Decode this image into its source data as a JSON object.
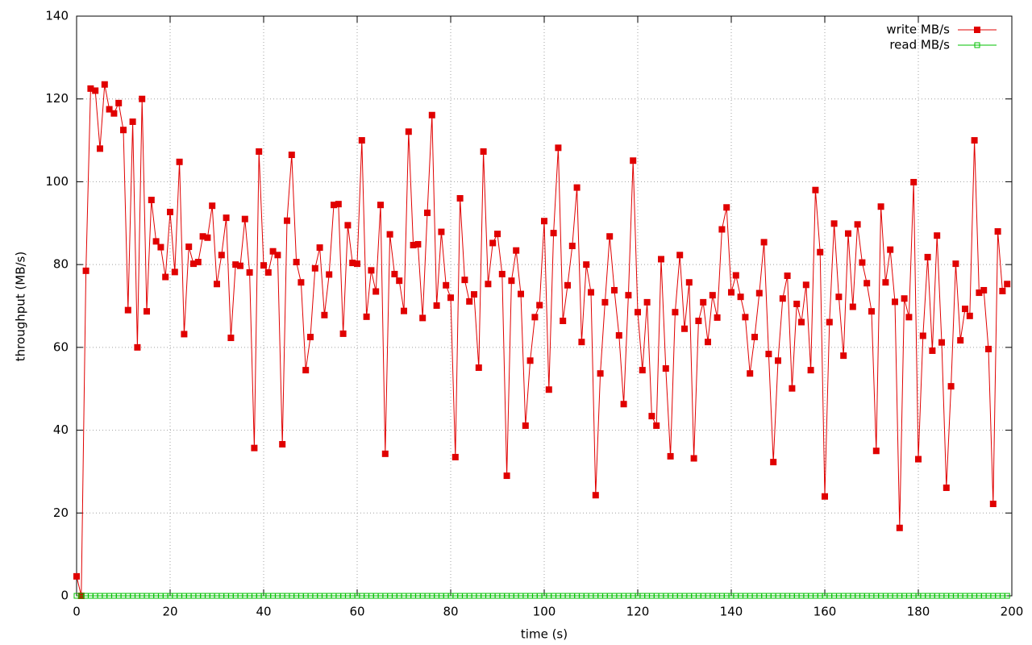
{
  "chart_data": {
    "type": "line",
    "xlabel": "time (s)",
    "ylabel": "throughput (MB/s)",
    "x": [
      0,
      1,
      2,
      3,
      4,
      5,
      6,
      7,
      8,
      9,
      10,
      11,
      12,
      13,
      14,
      15,
      16,
      17,
      18,
      19,
      20,
      21,
      22,
      23,
      24,
      25,
      26,
      27,
      28,
      29,
      30,
      31,
      32,
      33,
      34,
      35,
      36,
      37,
      38,
      39,
      40,
      41,
      42,
      43,
      44,
      45,
      46,
      47,
      48,
      49,
      50,
      51,
      52,
      53,
      54,
      55,
      56,
      57,
      58,
      59,
      60,
      61,
      62,
      63,
      64,
      65,
      66,
      67,
      68,
      69,
      70,
      71,
      72,
      73,
      74,
      75,
      76,
      77,
      78,
      79,
      80,
      81,
      82,
      83,
      84,
      85,
      86,
      87,
      88,
      89,
      90,
      91,
      92,
      93,
      94,
      95,
      96,
      97,
      98,
      99,
      100,
      101,
      102,
      103,
      104,
      105,
      106,
      107,
      108,
      109,
      110,
      111,
      112,
      113,
      114,
      115,
      116,
      117,
      118,
      119,
      120,
      121,
      122,
      123,
      124,
      125,
      126,
      127,
      128,
      129,
      130,
      131,
      132,
      133,
      134,
      135,
      136,
      137,
      138,
      139,
      140,
      141,
      142,
      143,
      144,
      145,
      146,
      147,
      148,
      149,
      150,
      151,
      152,
      153,
      154,
      155,
      156,
      157,
      158,
      159,
      160,
      161,
      162,
      163,
      164,
      165,
      166,
      167,
      168,
      169,
      170,
      171,
      172,
      173,
      174,
      175,
      176,
      177,
      178,
      179,
      180,
      181,
      182,
      183,
      184,
      185,
      186,
      187,
      188,
      189,
      190,
      191,
      192,
      193,
      194,
      195,
      196,
      197,
      198,
      199
    ],
    "series": [
      {
        "name": "write MB/s",
        "color": "#e00000",
        "marker": "filled-square",
        "values": [
          4.7,
          0,
          78.5,
          122.5,
          122,
          108,
          123.5,
          117.5,
          116.5,
          119,
          112.5,
          69,
          114.5,
          60,
          120,
          68.7,
          95.6,
          85.6,
          84.2,
          77,
          92.7,
          78.2,
          104.8,
          63.2,
          84.3,
          80.2,
          80.6,
          86.8,
          86.5,
          94.2,
          75.3,
          82.3,
          91.3,
          62.3,
          80,
          79.7,
          91,
          78.1,
          35.7,
          107.3,
          79.8,
          78.1,
          83.2,
          82.3,
          36.6,
          90.6,
          106.5,
          80.6,
          75.7,
          54.5,
          62.5,
          79.1,
          84.1,
          67.8,
          77.6,
          94.4,
          94.6,
          63.3,
          89.5,
          80.4,
          80.2,
          110,
          67.4,
          78.6,
          73.5,
          94.4,
          34.3,
          87.3,
          77.7,
          76.1,
          68.8,
          112.1,
          84.7,
          84.9,
          67.1,
          92.5,
          116.1,
          70.1,
          87.9,
          75,
          72,
          33.5,
          96,
          76.3,
          71.1,
          72.8,
          55.1,
          107.3,
          75.3,
          85.2,
          87.4,
          77.7,
          29,
          76.1,
          83.4,
          72.9,
          41.1,
          56.8,
          67.3,
          70.2,
          90.5,
          49.8,
          87.6,
          108.2,
          66.4,
          75,
          84.5,
          98.6,
          61.3,
          80,
          73.3,
          24.3,
          53.7,
          70.9,
          86.8,
          73.8,
          62.9,
          46.3,
          72.6,
          105.1,
          68.5,
          54.5,
          70.9,
          43.4,
          41.1,
          81.3,
          54.9,
          33.7,
          68.5,
          82.3,
          64.5,
          75.7,
          33.2,
          66.4,
          70.9,
          61.3,
          72.6,
          67.2,
          88.5,
          93.8,
          73.3,
          77.4,
          72.2,
          67.3,
          53.7,
          62.5,
          73.1,
          85.4,
          58.4,
          32.3,
          56.8,
          71.8,
          77.3,
          50.1,
          70.5,
          66.1,
          75.1,
          54.5,
          98,
          83,
          24,
          66.1,
          89.9,
          72.2,
          58,
          87.5,
          69.8,
          89.7,
          80.5,
          75.5,
          68.7,
          35,
          94,
          75.7,
          83.6,
          71,
          16.4,
          71.8,
          67.3,
          99.9,
          33,
          62.8,
          81.8,
          59.2,
          87,
          61.2,
          26.1,
          50.6,
          80.2,
          61.7,
          69.3,
          67.6,
          110,
          73.2,
          73.8,
          59.6,
          22.2,
          88,
          73.6,
          75.3
        ]
      },
      {
        "name": "read MB/s",
        "color": "#00c000",
        "marker": "open-square",
        "values": [
          0,
          0,
          0,
          0,
          0,
          0,
          0,
          0,
          0,
          0,
          0,
          0,
          0,
          0,
          0,
          0,
          0,
          0,
          0,
          0,
          0,
          0,
          0,
          0,
          0,
          0,
          0,
          0,
          0,
          0,
          0,
          0,
          0,
          0,
          0,
          0,
          0,
          0,
          0,
          0,
          0,
          0,
          0,
          0,
          0,
          0,
          0,
          0,
          0,
          0,
          0,
          0,
          0,
          0,
          0,
          0,
          0,
          0,
          0,
          0,
          0,
          0,
          0,
          0,
          0,
          0,
          0,
          0,
          0,
          0,
          0,
          0,
          0,
          0,
          0,
          0,
          0,
          0,
          0,
          0,
          0,
          0,
          0,
          0,
          0,
          0,
          0,
          0,
          0,
          0,
          0,
          0,
          0,
          0,
          0,
          0,
          0,
          0,
          0,
          0,
          0,
          0,
          0,
          0,
          0,
          0,
          0,
          0,
          0,
          0,
          0,
          0,
          0,
          0,
          0,
          0,
          0,
          0,
          0,
          0,
          0,
          0,
          0,
          0,
          0,
          0,
          0,
          0,
          0,
          0,
          0,
          0,
          0,
          0,
          0,
          0,
          0,
          0,
          0,
          0,
          0,
          0,
          0,
          0,
          0,
          0,
          0,
          0,
          0,
          0,
          0,
          0,
          0,
          0,
          0,
          0,
          0,
          0,
          0,
          0,
          0,
          0,
          0,
          0,
          0,
          0,
          0,
          0,
          0,
          0,
          0,
          0,
          0,
          0,
          0,
          0,
          0,
          0,
          0,
          0,
          0,
          0,
          0,
          0,
          0,
          0,
          0,
          0,
          0,
          0,
          0,
          0,
          0,
          0,
          0,
          0,
          0,
          0,
          0,
          0
        ]
      }
    ],
    "xlim": [
      0,
      200
    ],
    "xticks": [
      0,
      20,
      40,
      60,
      80,
      100,
      120,
      140,
      160,
      180,
      200
    ],
    "ylim": [
      0,
      140
    ],
    "yticks": [
      0,
      20,
      40,
      60,
      80,
      100,
      120,
      140
    ],
    "grid": true,
    "legend": "top-right"
  }
}
